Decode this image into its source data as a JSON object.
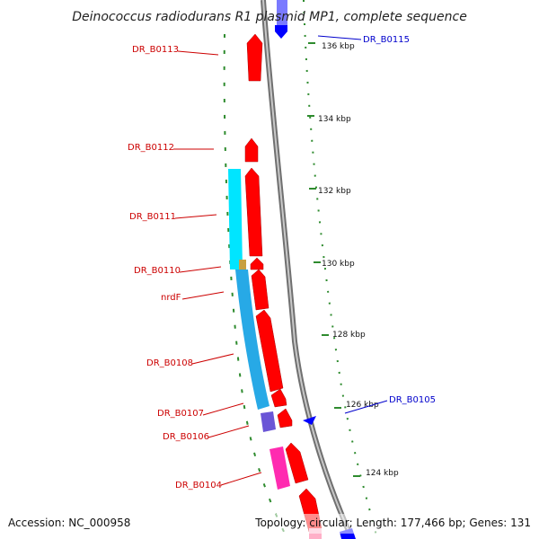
{
  "header": {
    "title": "Deinococcus radiodurans R1 plasmid MP1, complete sequence"
  },
  "footer": {
    "accession": "Accession: NC_000958",
    "summary": "Topology: circular; Length: 177,466 bp; Genes: 131"
  },
  "ruler": {
    "ticks": [
      "136 kbp",
      "134 kbp",
      "132 kbp",
      "130 kbp",
      "128 kbp",
      "126 kbp",
      "124 kbp"
    ]
  },
  "genes": {
    "labels": [
      "DR_B0113",
      "DR_B0112",
      "DR_B0111",
      "DR_B0110",
      "nrdF",
      "DR_B0108",
      "DR_B0107",
      "DR_B0106",
      "DR_B0104",
      "DR_B0115",
      "DR_B0105"
    ]
  },
  "colors": {
    "forward_gene": "#ff0000",
    "reverse_gene": "#0000ff",
    "label_forward": "#cc0000",
    "label_reverse": "#0000cc",
    "cog_cyan": "#00e5ff",
    "cog_lightblue": "#27a9e6",
    "cog_magenta": "#ff2bb0",
    "cog_purple": "#6a55d6",
    "backbone": "#888888",
    "tick_green": "#2e8b2e"
  }
}
